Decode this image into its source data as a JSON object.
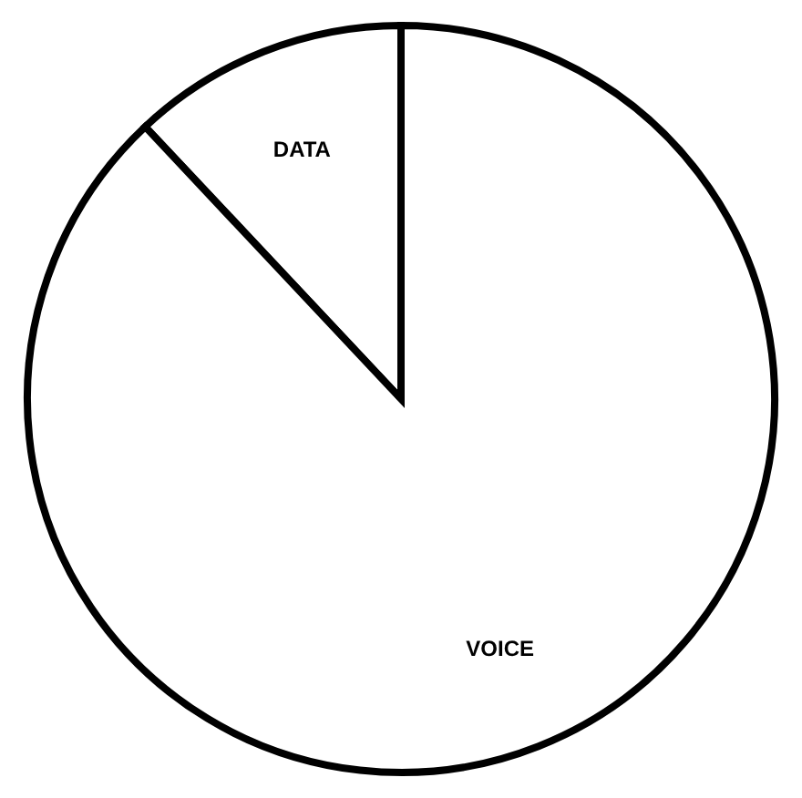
{
  "chart_data": {
    "type": "pie",
    "categories": [
      "DATA",
      "VOICE"
    ],
    "values": [
      12,
      88
    ],
    "colors": [
      "#ffffff",
      "#ffffff"
    ],
    "legend": false
  }
}
